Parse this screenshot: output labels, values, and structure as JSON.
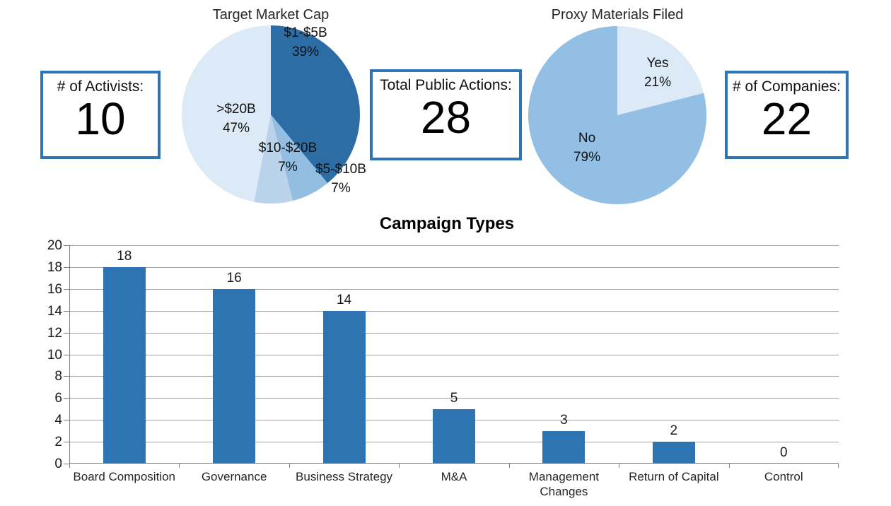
{
  "stats": [
    {
      "label": "# of Activists:",
      "value": "10"
    },
    {
      "label": "Total Public Actions:",
      "value": "28"
    },
    {
      "label": "# of Companies:",
      "value": "22"
    }
  ],
  "colors": {
    "box_border": "#2E75B6",
    "bar": "#2F74B2",
    "gridline": "#A3A3A3",
    "axis": "#7F7F7F"
  },
  "chart_data": [
    {
      "type": "pie",
      "title": "Target Market Cap",
      "start_angle_deg": 0,
      "direction": "clockwise",
      "slices": [
        {
          "label": "$1-$5B",
          "pct": 39,
          "pct_label": "39%",
          "color": "#2D6DA5"
        },
        {
          "label": "$5-$10B",
          "pct": 7,
          "pct_label": "7%",
          "color": "#93BEE2"
        },
        {
          "label": "$10-$20B",
          "pct": 7,
          "pct_label": "7%",
          "color": "#BAD3EB"
        },
        {
          "label": ">$20B",
          "pct": 47,
          "pct_label": "47%",
          "color": "#DCE9F6"
        }
      ]
    },
    {
      "type": "pie",
      "title": "Proxy Materials Filed",
      "start_angle_deg": 0,
      "direction": "clockwise",
      "slices": [
        {
          "label": "Yes",
          "pct": 21,
          "pct_label": "21%",
          "color": "#DCE9F6"
        },
        {
          "label": "No",
          "pct": 79,
          "pct_label": "79%",
          "color": "#92BFE3"
        }
      ]
    },
    {
      "type": "bar",
      "title": "Campaign Types",
      "categories": [
        "Board Composition",
        "Governance",
        "Business Strategy",
        "M&A",
        "Management Changes",
        "Return of Capital",
        "Control"
      ],
      "values": [
        18,
        16,
        14,
        5,
        3,
        2,
        0
      ],
      "value_labels": [
        "18",
        "16",
        "14",
        "5",
        "3",
        "2",
        "0"
      ],
      "xlabel": "",
      "ylabel": "",
      "ylim": [
        0,
        20
      ],
      "yticks": [
        0,
        2,
        4,
        6,
        8,
        10,
        12,
        14,
        16,
        18,
        20
      ],
      "grid": true,
      "legend": false,
      "bar_color": "#2F74B2"
    }
  ]
}
